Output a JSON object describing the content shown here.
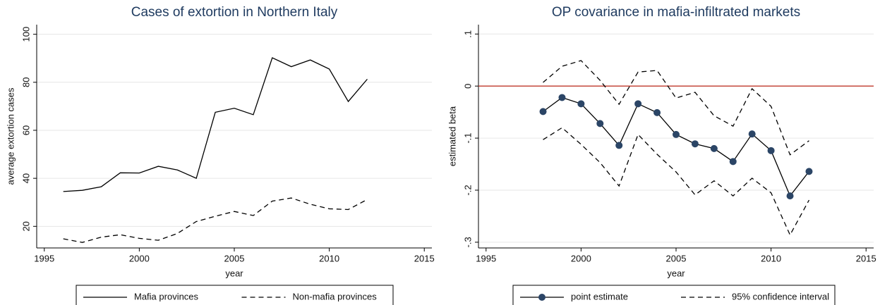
{
  "chart_data": [
    {
      "type": "line",
      "title": "Cases of extortion in Northern Italy",
      "x_label": "year",
      "y_label": "average extortion cases",
      "x": [
        1996,
        1997,
        1998,
        1999,
        2000,
        2001,
        2002,
        2003,
        2004,
        2005,
        2006,
        2007,
        2008,
        2009,
        2010,
        2011,
        2012
      ],
      "series": [
        {
          "name": "Mafia provinces",
          "color": "#000000",
          "dash": false,
          "values": [
            34.5,
            35,
            36.5,
            42.3,
            42.2,
            45,
            43.5,
            40,
            67.5,
            69.2,
            66.5,
            90.2,
            86.5,
            89.3,
            85.5,
            72,
            81.3
          ]
        },
        {
          "name": "Non-mafia provinces",
          "color": "#000000",
          "dash": true,
          "values": [
            14.8,
            13.3,
            15.5,
            16.5,
            15,
            14.2,
            17,
            22,
            24.2,
            26.2,
            24.5,
            30.5,
            31.8,
            29.2,
            27.3,
            27,
            31.2
          ]
        }
      ],
      "xlim": [
        1994.6,
        2015.4
      ],
      "xticks": [
        1995,
        2000,
        2005,
        2010,
        2015
      ],
      "ylim": [
        11,
        104
      ],
      "yticks": [
        20,
        40,
        60,
        80,
        100
      ],
      "grid": true
    },
    {
      "type": "line",
      "title": "OP covariance in mafia-infiltrated markets",
      "x_label": "year",
      "y_label": "estimated beta",
      "x": [
        1998,
        1999,
        2000,
        2001,
        2002,
        2003,
        2004,
        2005,
        2006,
        2007,
        2008,
        2009,
        2010,
        2011,
        2012
      ],
      "series": [
        {
          "name": "point estimate",
          "color": "#000000",
          "marker_color": "#2b4566",
          "marker": "circle",
          "dash": false,
          "values": [
            -0.049,
            -0.022,
            -0.034,
            -0.072,
            -0.114,
            -0.034,
            -0.051,
            -0.093,
            -0.111,
            -0.12,
            -0.145,
            -0.092,
            -0.124,
            -0.211,
            -0.164
          ]
        },
        {
          "name": "95% confidence interval",
          "color": "#000000",
          "dash": true,
          "values": [
            0.007,
            0.038,
            0.049,
            0.011,
            -0.035,
            0.027,
            0.03,
            -0.023,
            -0.012,
            -0.057,
            -0.077,
            -0.005,
            -0.039,
            -0.132,
            -0.105
          ]
        },
        {
          "color": "#000000",
          "dash": true,
          "values": [
            -0.103,
            -0.08,
            -0.112,
            -0.147,
            -0.192,
            -0.093,
            -0.131,
            -0.165,
            -0.209,
            -0.182,
            -0.211,
            -0.177,
            -0.205,
            -0.286,
            -0.219
          ]
        }
      ],
      "xlim": [
        1994.6,
        2015.4
      ],
      "xticks": [
        1995,
        2000,
        2005,
        2010,
        2015
      ],
      "ylim": [
        -0.311,
        0.118
      ],
      "yticks": [
        {
          "value": -0.3,
          "label": "-.3"
        },
        {
          "value": -0.2,
          "label": "-.2"
        },
        {
          "value": -0.1,
          "label": "-.1"
        },
        0,
        {
          "value": 0.1,
          "label": ".1"
        }
      ],
      "hline": 0,
      "hline_color": "#c0392b",
      "grid": true
    }
  ]
}
